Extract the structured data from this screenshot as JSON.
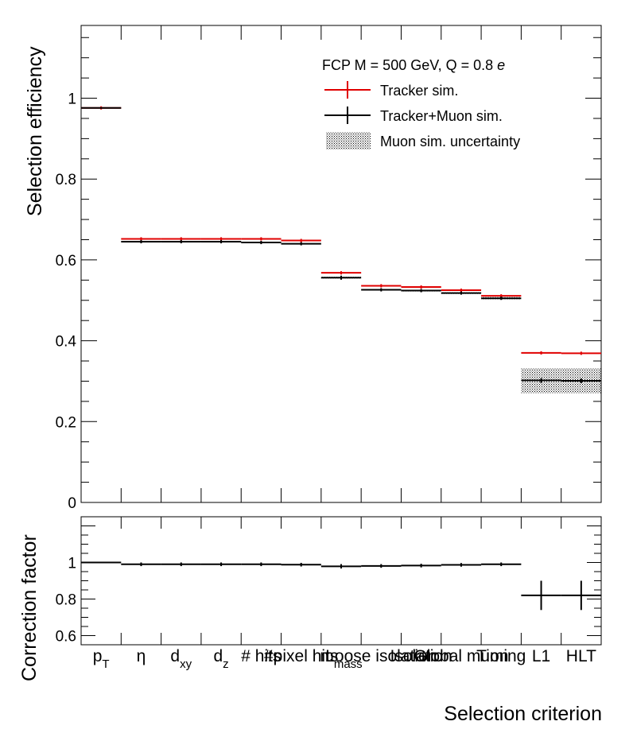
{
  "chart_data": [
    {
      "type": "line",
      "panel": "efficiency",
      "ylabel": "Selection efficiency",
      "ylim": [
        0,
        1.18
      ],
      "yticks": [
        "0",
        "0.2",
        "0.4",
        "0.6",
        "0.8",
        "1"
      ],
      "categories": [
        "p_T",
        "η",
        "d_xy",
        "d_z",
        "# hits",
        "# pixel hits",
        "m_mass",
        "Loose isolation",
        "Isolation",
        "Global muon",
        "Timing",
        "L1",
        "HLT"
      ],
      "legend": {
        "position": "top-right",
        "header": "FCP M = 500 GeV, Q = 0.8 e",
        "entries": [
          "Tracker sim.",
          "Tracker+Muon sim.",
          "Muon sim. uncertainty"
        ]
      },
      "series": [
        {
          "name": "Tracker sim.",
          "color": "#e00000",
          "values": [
            0.976,
            0.652,
            0.652,
            0.652,
            0.652,
            0.648,
            0.568,
            0.536,
            0.533,
            0.525,
            0.511,
            0.37,
            0.369
          ]
        },
        {
          "name": "Tracker+Muon sim.",
          "color": "#000000",
          "values": [
            0.976,
            0.645,
            0.645,
            0.645,
            0.643,
            0.64,
            0.556,
            0.526,
            0.524,
            0.518,
            0.505,
            0.302,
            0.301
          ],
          "errors": [
            0.001,
            0.004,
            0.004,
            0.004,
            0.004,
            0.004,
            0.005,
            0.004,
            0.004,
            0.004,
            0.004,
            0.006,
            0.006
          ]
        }
      ],
      "band": {
        "name": "Muon sim. uncertainty",
        "low": [
          0.976,
          0.644,
          0.644,
          0.644,
          0.642,
          0.639,
          0.554,
          0.524,
          0.522,
          0.516,
          0.502,
          0.27,
          0.27
        ],
        "high": [
          0.976,
          0.646,
          0.646,
          0.646,
          0.644,
          0.641,
          0.558,
          0.528,
          0.526,
          0.52,
          0.508,
          0.332,
          0.332
        ]
      }
    },
    {
      "type": "line",
      "panel": "ratio",
      "ylabel": "Correction factor",
      "xlabel": "Selection criterion",
      "ylim": [
        0.55,
        1.25
      ],
      "yticks": [
        "0.6",
        "0.8",
        "1"
      ],
      "categories": [
        "p_T",
        "η",
        "d_xy",
        "d_z",
        "# hits",
        "# pixel hits",
        "m_mass",
        "Loose isolation",
        "Isolation",
        "Global muon",
        "Timing",
        "L1",
        "HLT"
      ],
      "series": [
        {
          "name": "Correction factor",
          "values": [
            1.0,
            0.99,
            0.99,
            0.99,
            0.99,
            0.988,
            0.979,
            0.981,
            0.983,
            0.987,
            0.99,
            0.82,
            0.82
          ],
          "errors": [
            0.002,
            0.01,
            0.01,
            0.01,
            0.01,
            0.01,
            0.012,
            0.01,
            0.01,
            0.01,
            0.01,
            0.08,
            0.08
          ]
        }
      ]
    }
  ],
  "legend_header": {
    "main": "FCP M = 500 GeV, Q = 0.8 ",
    "italic": "e"
  },
  "xtick_labels": [
    {
      "main": "p",
      "sub": "T"
    },
    {
      "main": "η",
      "sub": ""
    },
    {
      "main": "d",
      "sub": "xy"
    },
    {
      "main": "d",
      "sub": "z"
    },
    {
      "main": "# hits",
      "sub": ""
    },
    {
      "main": "#pixel hits",
      "sub": ""
    },
    {
      "main": "m",
      "sub": "mass"
    },
    {
      "main": "Loose isolation",
      "sub": ""
    },
    {
      "main": "Isolation",
      "sub": ""
    },
    {
      "main": "Global muon",
      "sub": ""
    },
    {
      "main": "Timing",
      "sub": ""
    },
    {
      "main": "L1",
      "sub": ""
    },
    {
      "main": "HLT",
      "sub": ""
    }
  ]
}
